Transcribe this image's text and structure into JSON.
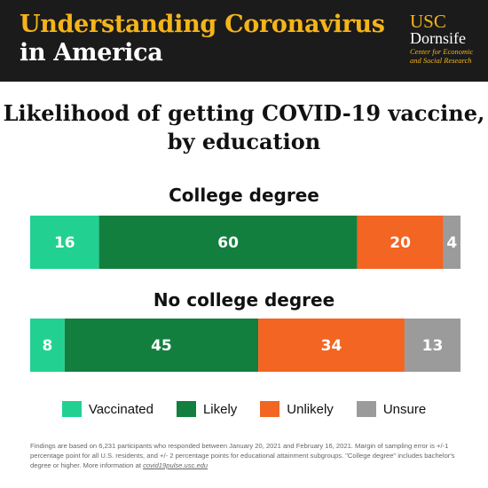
{
  "header": {
    "title_line1": "Understanding Coronavirus",
    "title_line2": "in America",
    "logo_usc": "USC",
    "logo_dornsife": "Dornsife",
    "logo_sub": "Center for Economic and Social Research"
  },
  "colors": {
    "header_bg": "#1b1b1b",
    "header_gold": "#f4b41a",
    "vaccinated": "#22d192",
    "likely": "#137f3f",
    "unlikely": "#f26522",
    "unsure": "#9b9b9b"
  },
  "chart_data": {
    "type": "bar",
    "orientation": "horizontal-stacked-100",
    "title": "Likelihood of getting COVID-19 vaccine, by education",
    "title_lines": [
      "Likelihood of getting COVID-19 vaccine,",
      "by education"
    ],
    "categories": [
      "College degree",
      "No college degree"
    ],
    "series": [
      {
        "name": "Vaccinated",
        "values": [
          16,
          8
        ],
        "color": "#22d192"
      },
      {
        "name": "Likely",
        "values": [
          60,
          45
        ],
        "color": "#137f3f"
      },
      {
        "name": "Unlikely",
        "values": [
          20,
          34
        ],
        "color": "#f26522"
      },
      {
        "name": "Unsure",
        "values": [
          4,
          13
        ],
        "color": "#9b9b9b"
      }
    ],
    "legend_position": "bottom"
  },
  "footnote": {
    "text": "Findings are based on 6,231 participants who responded between January 20, 2021 and February 16, 2021. Margin of sampling error is +/-1 percentage point for all U.S. residents, and +/- 2 percentage points for educational attainment subgroups. \"College degree\" includes bachelor's degree or higher. More information at",
    "link": "covid19pulse.usc.edu"
  }
}
